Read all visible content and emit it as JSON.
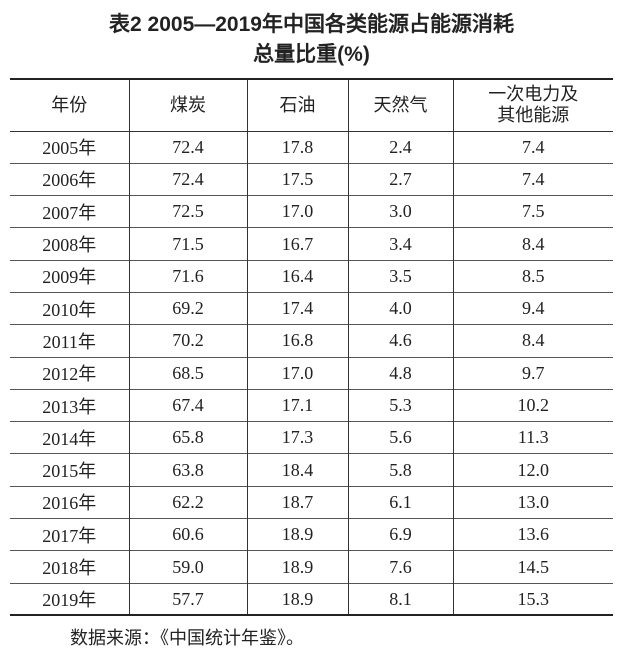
{
  "title": [
    "表2 2005—2019年中国各类能源占能源消耗",
    "总量比重(%)"
  ],
  "table": {
    "columns": [
      "年份",
      "煤炭",
      "石油",
      "天然气",
      "一次电力及其他能源"
    ],
    "rows": [
      [
        "2005年",
        "72.4",
        "17.8",
        "2.4",
        "7.4"
      ],
      [
        "2006年",
        "72.4",
        "17.5",
        "2.7",
        "7.4"
      ],
      [
        "2007年",
        "72.5",
        "17.0",
        "3.0",
        "7.5"
      ],
      [
        "2008年",
        "71.5",
        "16.7",
        "3.4",
        "8.4"
      ],
      [
        "2009年",
        "71.6",
        "16.4",
        "3.5",
        "8.5"
      ],
      [
        "2010年",
        "69.2",
        "17.4",
        "4.0",
        "9.4"
      ],
      [
        "2011年",
        "70.2",
        "16.8",
        "4.6",
        "8.4"
      ],
      [
        "2012年",
        "68.5",
        "17.0",
        "4.8",
        "9.7"
      ],
      [
        "2013年",
        "67.4",
        "17.1",
        "5.3",
        "10.2"
      ],
      [
        "2014年",
        "65.8",
        "17.3",
        "5.6",
        "11.3"
      ],
      [
        "2015年",
        "63.8",
        "18.4",
        "5.8",
        "12.0"
      ],
      [
        "2016年",
        "62.2",
        "18.7",
        "6.1",
        "13.0"
      ],
      [
        "2017年",
        "60.6",
        "18.9",
        "6.9",
        "13.6"
      ],
      [
        "2018年",
        "59.0",
        "18.9",
        "7.6",
        "14.5"
      ],
      [
        "2019年",
        "57.7",
        "18.9",
        "8.1",
        "15.3"
      ]
    ]
  },
  "source": "数据来源：《中国统计年鉴》。"
}
